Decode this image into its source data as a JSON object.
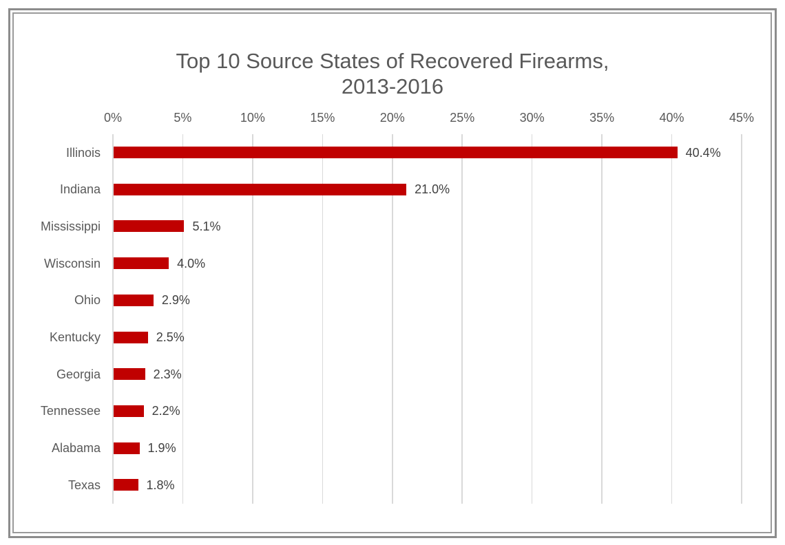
{
  "chart_data": {
    "type": "bar",
    "orientation": "horizontal",
    "title": "Top 10 Source States of Recovered Firearms, 2013-2016",
    "title_lines": [
      "Top 10 Source States of Recovered Firearms,",
      "2013-2016"
    ],
    "xlabel": "",
    "ylabel": "",
    "categories": [
      "Illinois",
      "Indiana",
      "Mississippi",
      "Wisconsin",
      "Ohio",
      "Kentucky",
      "Georgia",
      "Tennessee",
      "Alabama",
      "Texas"
    ],
    "values": [
      40.4,
      21.0,
      5.1,
      4.0,
      2.9,
      2.5,
      2.3,
      2.2,
      1.9,
      1.8
    ],
    "value_labels": [
      "40.4%",
      "21.0%",
      "5.1%",
      "4.0%",
      "2.9%",
      "2.5%",
      "2.3%",
      "2.2%",
      "1.9%",
      "1.8%"
    ],
    "unit": "%",
    "xlim": [
      0,
      45
    ],
    "x_ticks": [
      0,
      5,
      10,
      15,
      20,
      25,
      30,
      35,
      40,
      45
    ],
    "x_tick_labels": [
      "0%",
      "5%",
      "10%",
      "15%",
      "20%",
      "25%",
      "30%",
      "35%",
      "40%",
      "45%"
    ],
    "x_axis_position": "top",
    "grid": "vertical",
    "legend": "none",
    "colors": {
      "bar": "#c00000",
      "grid": "#d9d9d9",
      "text": "#595959",
      "border": "#8c8c8c"
    }
  }
}
